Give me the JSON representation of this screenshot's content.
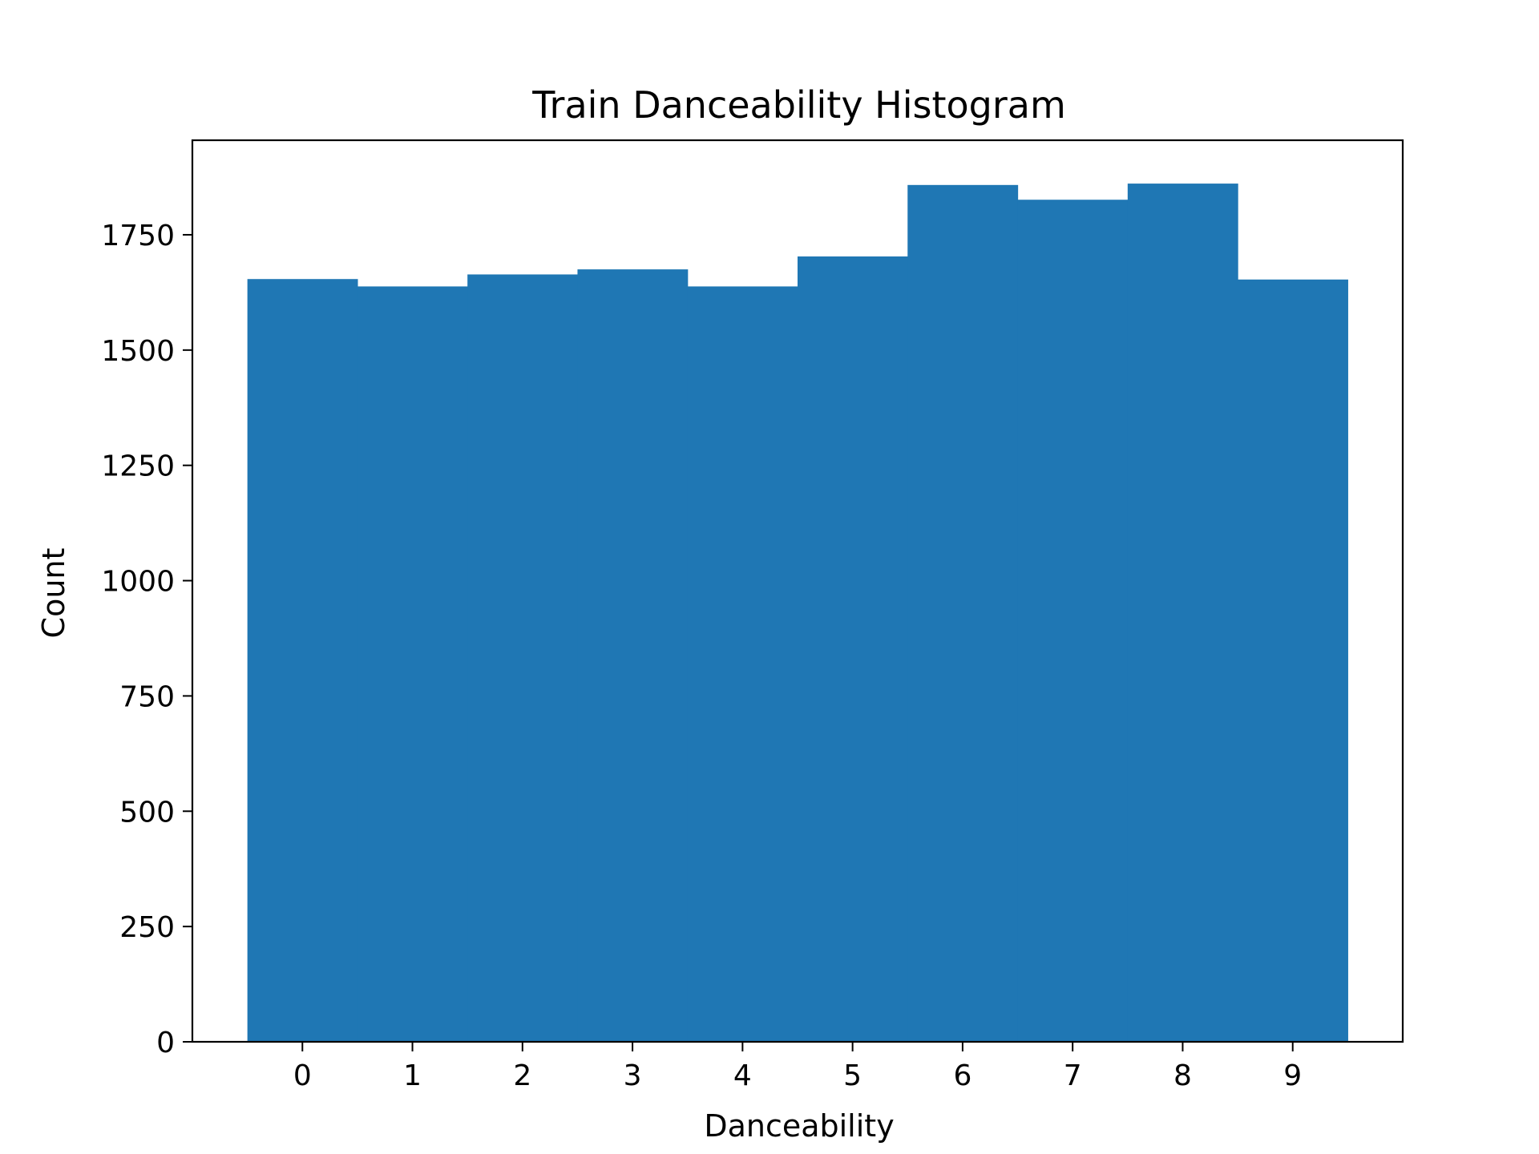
{
  "chart_data": {
    "type": "bar",
    "title": "Train Danceability Histogram",
    "xlabel": "Danceability",
    "ylabel": "Count",
    "categories": [
      "0",
      "1",
      "2",
      "3",
      "4",
      "5",
      "6",
      "7",
      "8",
      "9"
    ],
    "values": [
      1654,
      1638,
      1664,
      1675,
      1638,
      1703,
      1858,
      1826,
      1861,
      1653
    ],
    "ylim": [
      0,
      1955
    ],
    "yticks": [
      "0",
      "250",
      "500",
      "750",
      "1000",
      "1250",
      "1500",
      "1750"
    ],
    "grid": false,
    "bar_color": "#1f77b4"
  }
}
